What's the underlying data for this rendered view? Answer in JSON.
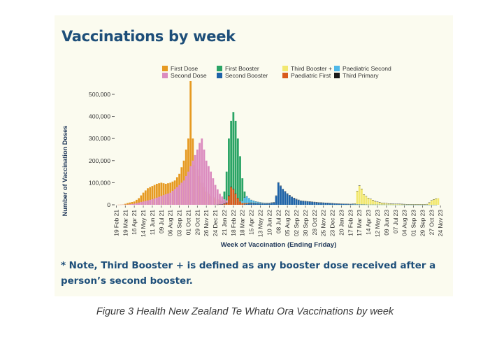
{
  "figure": {
    "title": "Vaccinations by week",
    "note": "* Note, Third Booster + is defined as any booster dose received after a person’s second booster.",
    "caption": "Figure 3 Health New Zealand Te Whatu Ora Vaccinations by week"
  },
  "chart_data": {
    "type": "bar",
    "stacked": true,
    "xlabel": "Week of Vaccination (Ending Friday)",
    "ylabel": "Number of Vaccination Doses",
    "ylim": [
      0,
      560000
    ],
    "yticks": [
      0,
      100000,
      200000,
      300000,
      400000,
      500000
    ],
    "ytick_labels": [
      "0",
      "100,000",
      "200,000",
      "300,000",
      "400,000",
      "500,000"
    ],
    "xticks": [
      "19 Feb 21",
      "19 Mar 21",
      "16 Apr 21",
      "14 May 21",
      "11 Jun 21",
      "09 Jul 21",
      "06 Aug 21",
      "03 Sep 21",
      "01 Oct 21",
      "29 Oct 21",
      "26 Nov 21",
      "24 Dec 21",
      "21 Jan 22",
      "18 Feb 22",
      "18 Mar 22",
      "15 Apr 22",
      "13 May 22",
      "10 Jun 22",
      "08 Jul 22",
      "05 Aug 22",
      "02 Sep 22",
      "30 Sep 22",
      "28 Oct 22",
      "25 Nov 22",
      "23 Dec 22",
      "20 Jan 23",
      "17 Feb 23",
      "17 Mar 23",
      "14 Apr 23",
      "12 May 23",
      "09 Jun 23",
      "07 Jul 23",
      "04 Aug 23",
      "01 Sep 23",
      "29 Sep 23",
      "27 Oct 23",
      "24 Nov 23"
    ],
    "week_ending_first": "2021-02-19",
    "week_ending_last": "2023-11-24",
    "grid": false,
    "legend_position": "top",
    "series": [
      {
        "name": "First Dose",
        "color": "#e69a22",
        "anchors": [
          [
            0,
            0
          ],
          [
            3,
            1000
          ],
          [
            5,
            8000
          ],
          [
            8,
            15000
          ],
          [
            10,
            30000
          ],
          [
            12,
            55000
          ],
          [
            14,
            75000
          ],
          [
            16,
            85000
          ],
          [
            18,
            95000
          ],
          [
            20,
            100000
          ],
          [
            22,
            95000
          ],
          [
            24,
            100000
          ],
          [
            26,
            110000
          ],
          [
            28,
            140000
          ],
          [
            30,
            200000
          ],
          [
            32,
            300000
          ],
          [
            33,
            560000
          ],
          [
            34,
            300000
          ],
          [
            35,
            180000
          ],
          [
            36,
            160000
          ],
          [
            37,
            130000
          ],
          [
            38,
            100000
          ],
          [
            39,
            80000
          ],
          [
            40,
            60000
          ],
          [
            42,
            40000
          ],
          [
            44,
            30000
          ],
          [
            46,
            20000
          ],
          [
            48,
            15000
          ],
          [
            50,
            8000
          ],
          [
            52,
            4000
          ],
          [
            54,
            2000
          ],
          [
            58,
            0
          ],
          [
            143,
            0
          ]
        ]
      },
      {
        "name": "Second Dose",
        "color": "#db8bbf",
        "anchors": [
          [
            0,
            0
          ],
          [
            5,
            1000
          ],
          [
            8,
            5000
          ],
          [
            12,
            15000
          ],
          [
            16,
            25000
          ],
          [
            20,
            40000
          ],
          [
            24,
            55000
          ],
          [
            27,
            80000
          ],
          [
            30,
            110000
          ],
          [
            32,
            150000
          ],
          [
            34,
            200000
          ],
          [
            36,
            250000
          ],
          [
            37,
            280000
          ],
          [
            38,
            300000
          ],
          [
            39,
            250000
          ],
          [
            40,
            200000
          ],
          [
            42,
            150000
          ],
          [
            44,
            90000
          ],
          [
            46,
            50000
          ],
          [
            48,
            25000
          ],
          [
            50,
            15000
          ],
          [
            52,
            8000
          ],
          [
            54,
            4000
          ],
          [
            58,
            1000
          ],
          [
            62,
            0
          ],
          [
            143,
            0
          ]
        ]
      },
      {
        "name": "First Booster",
        "color": "#2aa465",
        "anchors": [
          [
            0,
            0
          ],
          [
            42,
            0
          ],
          [
            44,
            3000
          ],
          [
            46,
            8000
          ],
          [
            47,
            20000
          ],
          [
            48,
            60000
          ],
          [
            49,
            150000
          ],
          [
            50,
            300000
          ],
          [
            51,
            380000
          ],
          [
            52,
            420000
          ],
          [
            53,
            380000
          ],
          [
            54,
            300000
          ],
          [
            55,
            220000
          ],
          [
            56,
            120000
          ],
          [
            57,
            60000
          ],
          [
            58,
            30000
          ],
          [
            60,
            15000
          ],
          [
            62,
            8000
          ],
          [
            65,
            4000
          ],
          [
            70,
            2000
          ],
          [
            80,
            1000
          ],
          [
            100,
            500
          ],
          [
            143,
            0
          ]
        ]
      },
      {
        "name": "Second Booster",
        "color": "#1e63a8",
        "anchors": [
          [
            0,
            0
          ],
          [
            56,
            0
          ],
          [
            58,
            4000
          ],
          [
            60,
            8000
          ],
          [
            62,
            7000
          ],
          [
            64,
            6000
          ],
          [
            66,
            5000
          ],
          [
            68,
            6000
          ],
          [
            70,
            10000
          ],
          [
            71,
            40000
          ],
          [
            72,
            100000
          ],
          [
            73,
            85000
          ],
          [
            74,
            70000
          ],
          [
            76,
            50000
          ],
          [
            78,
            35000
          ],
          [
            80,
            25000
          ],
          [
            82,
            18000
          ],
          [
            86,
            14000
          ],
          [
            90,
            10000
          ],
          [
            94,
            8000
          ],
          [
            98,
            5000
          ],
          [
            104,
            3000
          ],
          [
            108,
            2000
          ],
          [
            112,
            1000
          ],
          [
            120,
            1000
          ],
          [
            143,
            0
          ]
        ]
      },
      {
        "name": "Third Booster +",
        "color": "#f2e870",
        "anchors": [
          [
            0,
            0
          ],
          [
            104,
            0
          ],
          [
            106,
            3000
          ],
          [
            107,
            60000
          ],
          [
            108,
            85000
          ],
          [
            109,
            70000
          ],
          [
            110,
            45000
          ],
          [
            112,
            30000
          ],
          [
            115,
            15000
          ],
          [
            118,
            8000
          ],
          [
            122,
            4000
          ],
          [
            126,
            3000
          ],
          [
            130,
            2000
          ],
          [
            134,
            2000
          ],
          [
            138,
            3000
          ],
          [
            139,
            10000
          ],
          [
            140,
            20000
          ],
          [
            141,
            25000
          ],
          [
            142,
            28000
          ],
          [
            143,
            30000
          ]
        ]
      },
      {
        "name": "Paediatric First",
        "color": "#d95a1b",
        "anchors": [
          [
            0,
            0
          ],
          [
            47,
            0
          ],
          [
            48,
            3000
          ],
          [
            49,
            8000
          ],
          [
            50,
            40000
          ],
          [
            51,
            80000
          ],
          [
            52,
            70000
          ],
          [
            53,
            50000
          ],
          [
            54,
            30000
          ],
          [
            55,
            15000
          ],
          [
            56,
            8000
          ],
          [
            58,
            4000
          ],
          [
            60,
            2000
          ],
          [
            64,
            1000
          ],
          [
            70,
            500
          ],
          [
            143,
            0
          ]
        ]
      },
      {
        "name": "Paediatric Second",
        "color": "#4fb8e8",
        "anchors": [
          [
            0,
            0
          ],
          [
            54,
            0
          ],
          [
            55,
            3000
          ],
          [
            56,
            10000
          ],
          [
            57,
            25000
          ],
          [
            58,
            30000
          ],
          [
            59,
            20000
          ],
          [
            60,
            12000
          ],
          [
            62,
            6000
          ],
          [
            65,
            3000
          ],
          [
            70,
            1000
          ],
          [
            80,
            500
          ],
          [
            143,
            0
          ]
        ]
      },
      {
        "name": "Third Primary",
        "color": "#1a1a1a",
        "anchors": [
          [
            0,
            0
          ],
          [
            44,
            0
          ],
          [
            46,
            1000
          ],
          [
            48,
            2000
          ],
          [
            50,
            2000
          ],
          [
            54,
            1000
          ],
          [
            60,
            500
          ],
          [
            80,
            300
          ],
          [
            143,
            0
          ]
        ]
      }
    ]
  }
}
